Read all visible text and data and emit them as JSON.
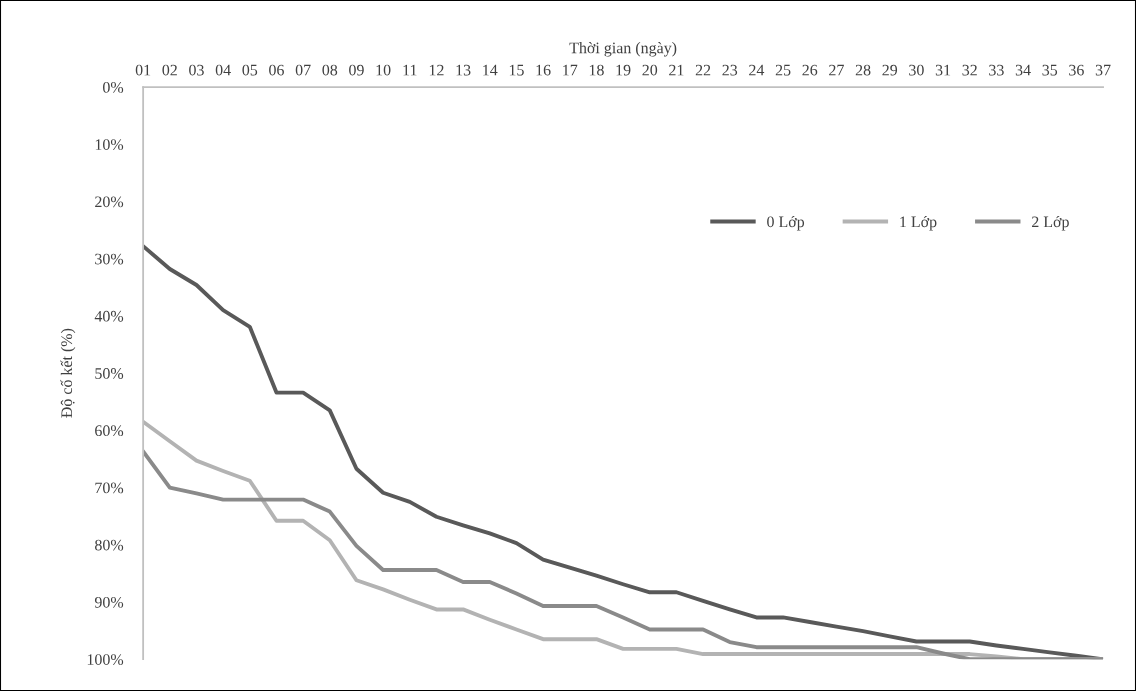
{
  "chart_data": {
    "type": "line",
    "xlabel": "Thời gian (ngày)",
    "ylabel": "Độ cố kết (%)",
    "categories": [
      "01",
      "02",
      "03",
      "04",
      "05",
      "06",
      "07",
      "08",
      "09",
      "10",
      "11",
      "12",
      "13",
      "14",
      "15",
      "16",
      "17",
      "18",
      "19",
      "20",
      "21",
      "22",
      "23",
      "24",
      "25",
      "26",
      "27",
      "28",
      "29",
      "30",
      "31",
      "32",
      "33",
      "34",
      "35",
      "36",
      "37"
    ],
    "series": [
      {
        "name": "0 Lớp",
        "color": "#595959",
        "values": [
          27.8,
          31.8,
          34.6,
          39.0,
          41.9,
          53.4,
          53.4,
          56.5,
          66.7,
          70.9,
          72.5,
          75.1,
          76.6,
          78.0,
          79.7,
          82.6,
          84.0,
          85.4,
          86.9,
          88.3,
          88.3,
          89.8,
          91.3,
          92.7,
          92.7,
          93.5,
          94.3,
          95.1,
          96.0,
          96.9,
          96.9,
          96.9,
          97.6,
          98.2,
          98.8,
          99.4,
          100
        ]
      },
      {
        "name": "1 Lớp",
        "color": "#b3b3b3",
        "values": [
          58.5,
          61.9,
          65.3,
          67.1,
          68.8,
          75.8,
          75.8,
          79.2,
          86.2,
          87.8,
          89.6,
          91.3,
          91.3,
          93.1,
          94.8,
          96.5,
          96.5,
          96.5,
          98.2,
          98.2,
          98.2,
          99.1,
          99.1,
          99.1,
          99.1,
          99.1,
          99.1,
          99.1,
          99.1,
          99.1,
          99.1,
          99.1,
          99.5,
          100,
          100,
          100,
          100
        ]
      },
      {
        "name": "2 Lớp",
        "color": "#8a8a8a",
        "values": [
          63.7,
          70.0,
          71.0,
          72.1,
          72.1,
          72.1,
          72.1,
          74.2,
          80.2,
          84.4,
          84.4,
          84.4,
          86.5,
          86.5,
          88.5,
          90.7,
          90.7,
          90.7,
          92.7,
          94.8,
          94.8,
          94.8,
          97.0,
          97.9,
          97.9,
          97.9,
          97.9,
          97.9,
          97.9,
          97.9,
          99.0,
          100,
          100,
          100,
          100,
          100,
          100
        ]
      }
    ],
    "ylim": [
      100,
      0
    ],
    "yticks": [
      {
        "value": 0,
        "label": "0%"
      },
      {
        "value": 10,
        "label": "10%"
      },
      {
        "value": 20,
        "label": "20%"
      },
      {
        "value": 30,
        "label": "30%"
      },
      {
        "value": 40,
        "label": "40%"
      },
      {
        "value": 50,
        "label": "50%"
      },
      {
        "value": 60,
        "label": "60%"
      },
      {
        "value": 70,
        "label": "70%"
      },
      {
        "value": 80,
        "label": "80%"
      },
      {
        "value": 90,
        "label": "90%"
      },
      {
        "value": 100,
        "label": "100%"
      }
    ],
    "grid": false,
    "legend": "top right",
    "marker": "none",
    "line_style": "solid"
  }
}
